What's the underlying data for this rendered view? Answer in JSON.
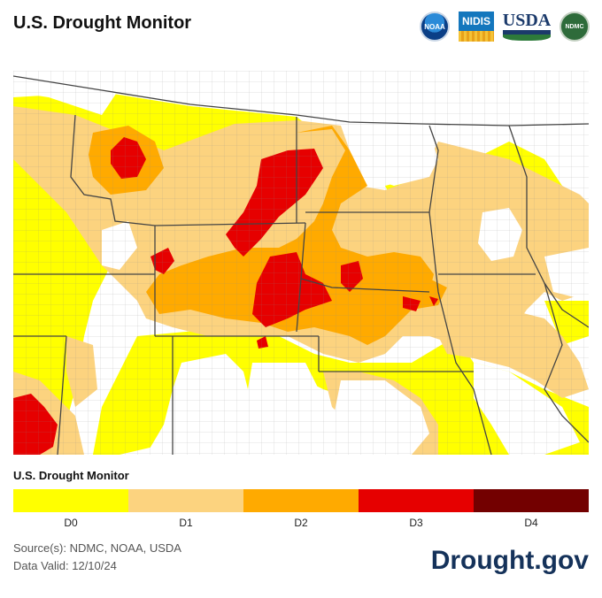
{
  "header": {
    "title": "U.S. Drought Monitor",
    "logos": [
      {
        "name": "noaa-logo",
        "text": "NOAA"
      },
      {
        "name": "nidis-logo",
        "text": "NIDIS"
      },
      {
        "name": "usda-logo",
        "text": "USDA"
      },
      {
        "name": "ndmc-logo",
        "text": "NDMC"
      }
    ]
  },
  "legend": {
    "title": "U.S. Drought Monitor",
    "categories": [
      {
        "label": "D0",
        "color": "#ffff00"
      },
      {
        "label": "D1",
        "color": "#fcd37f"
      },
      {
        "label": "D2",
        "color": "#ffaa00"
      },
      {
        "label": "D3",
        "color": "#e60000"
      },
      {
        "label": "D4",
        "color": "#730000"
      }
    ]
  },
  "footer": {
    "source": "Source(s): NDMC, NOAA, USDA",
    "valid": "Data Valid: 12/10/24",
    "brand": "Drought.gov"
  }
}
